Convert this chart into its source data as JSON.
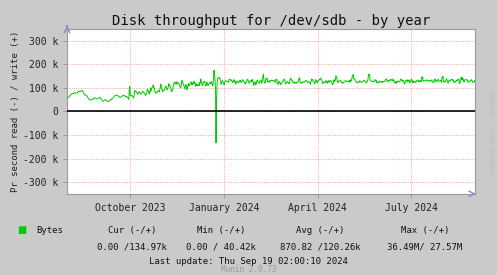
{
  "title": "Disk throughput for /dev/sdb - by year",
  "ylabel": "Pr second read (-) / write (+)",
  "background_color": "#CACACA",
  "plot_bg_color": "#FFFFFF",
  "grid_color_h": "#FF8888",
  "grid_color_v": "#FF8888",
  "line_color": "#00CC00",
  "zero_line_color": "#000000",
  "border_color": "#AAAAAA",
  "ylim": [
    -350000,
    350000
  ],
  "yticks": [
    -300000,
    -200000,
    -100000,
    0,
    100000,
    200000,
    300000
  ],
  "ytick_labels": [
    "-300 k",
    "-200 k",
    "-100 k",
    "0",
    "100 k",
    "200 k",
    "300 k"
  ],
  "xlabel_dates": [
    "October 2023",
    "January 2024",
    "April 2024",
    "July 2024"
  ],
  "x_tick_pos": [
    0.155,
    0.385,
    0.615,
    0.845
  ],
  "legend_label": "Bytes",
  "last_update": "Last update: Thu Sep 19 02:00:10 2024",
  "munin_version": "Munin 2.0.73",
  "rrdtool_label": "RRDTOOL / TOBI OETIKER",
  "title_fontsize": 10,
  "axis_fontsize": 7,
  "footer_fontsize": 6.5
}
